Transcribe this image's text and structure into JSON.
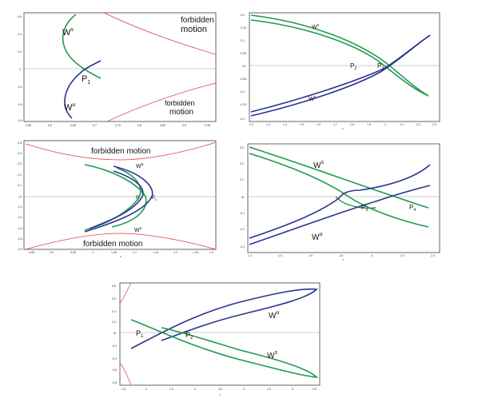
{
  "colors": {
    "stable": "#1f9a4f",
    "unstable": "#2b3590",
    "boundary": "#e33b3b",
    "axis": "#999999"
  },
  "panels": [
    {
      "id": "a",
      "labels": {
        "ws": "W",
        "ws_sup": "s",
        "wu": "W",
        "wu_sup": "u",
        "p": "P",
        "p_sub": "1",
        "forbidden_top": [
          "forbidden",
          "motion"
        ],
        "forbidden_bottom": [
          "forbidden",
          "motion"
        ]
      },
      "xticks": [
        "0.55",
        "0.6",
        "0.65",
        "0.7",
        "0.75",
        "0.8",
        "0.85",
        "0.9",
        "0.95"
      ],
      "yticks": [
        "0.6",
        "0.4",
        "0.2",
        "0",
        "-0.2",
        "-0.4",
        "-0.6"
      ]
    },
    {
      "id": "b",
      "labels": {
        "ws": "W",
        "ws_sup": "s",
        "wu": "W",
        "wu_sup": "u",
        "p2": "P",
        "p2_sub": "2",
        "p3": "P",
        "p3_sub": "3",
        "ylabel": "v",
        "xlabel": "x"
      },
      "xticks": [
        "1.2",
        "1.3",
        "1.4",
        "1.5",
        "1.6",
        "1.7",
        "1.8",
        "1.9",
        "2",
        "2.1",
        "2.2",
        "2.3"
      ],
      "yticks": [
        "0.2",
        "0.15",
        "0.1",
        "0.05",
        "0",
        "-0.05",
        "-0.1",
        "-0.15",
        "-0.2"
      ]
    },
    {
      "id": "c",
      "labels": {
        "ws": "W",
        "ws_sup": "s",
        "wu": "W",
        "wu_sup": "u",
        "p1": "P",
        "p1_sub": "1",
        "p2": "P",
        "p2_sub": "2",
        "forbidden_top": "forbidden motion",
        "forbidden_bottom": "forbidden motion",
        "ylabel": "v",
        "xlabel": "x"
      },
      "xticks": [
        "0.85",
        "0.9",
        "0.95",
        "1",
        "1.05",
        "1.1",
        "1.15",
        "1.2",
        "1.25",
        "1.3"
      ],
      "yticks": [
        "0.5",
        "0.4",
        "0.3",
        "0.2",
        "0.1",
        "0",
        "-0.1",
        "-0.2",
        "-0.3",
        "-0.4",
        "-0.5"
      ]
    },
    {
      "id": "d",
      "labels": {
        "ws": "W",
        "ws_sup": "s",
        "wu": "W",
        "wu_sup": "u",
        "p3": "P",
        "p3_sub": "3",
        "p4": "P",
        "p4_sub": "4",
        "ylabel": "v",
        "xlabel": "x"
      },
      "xticks": [
        "1.2",
        "1.4",
        "1.6",
        "1.8",
        "2",
        "2.2",
        "2.4"
      ],
      "yticks": [
        "0.3",
        "0.2",
        "0.1",
        "0",
        "-0.1",
        "-0.2",
        "-0.3"
      ]
    },
    {
      "id": "e",
      "labels": {
        "ws": "W",
        "ws_sup": "s",
        "wu": "W",
        "wu_sup": "u",
        "p1": "P",
        "p1_sub": "1",
        "p2": "P",
        "p2_sub": "2",
        "ylabel": "v",
        "xlabel": "x"
      },
      "xticks": [
        "1.5",
        "2",
        "2.5",
        "3",
        "3.5",
        "4",
        "4.5",
        "5",
        "5.5"
      ],
      "yticks": [
        "0.8",
        "0.6",
        "0.4",
        "0.2",
        "0",
        "-0.2",
        "-0.4",
        "-0.6",
        "-0.8"
      ]
    }
  ]
}
